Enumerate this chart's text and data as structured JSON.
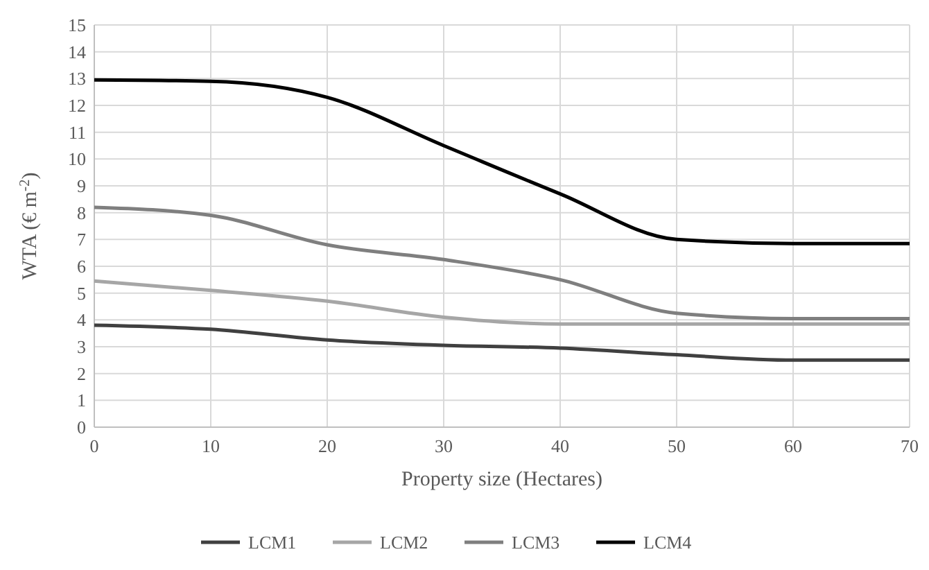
{
  "chart_data": {
    "type": "line",
    "xlabel": "Property size (Hectares)",
    "ylabel": "WTA (€ m$^{-2}$)",
    "x": [
      0,
      10,
      20,
      30,
      40,
      50,
      60,
      70
    ],
    "xlim": [
      0,
      70
    ],
    "xticks": [
      0,
      10,
      20,
      30,
      40,
      50,
      60,
      70
    ],
    "ylim": [
      0,
      15
    ],
    "yticks": [
      0,
      1,
      2,
      3,
      4,
      5,
      6,
      7,
      8,
      9,
      10,
      11,
      12,
      13,
      14,
      15
    ],
    "grid": true,
    "legend": "bottom",
    "marker": "none",
    "line_style": "solid",
    "series": [
      {
        "name": "LCM1",
        "color": "#404040",
        "values": [
          3.8,
          3.65,
          3.25,
          3.05,
          2.95,
          2.7,
          2.5,
          2.5
        ]
      },
      {
        "name": "LCM2",
        "color": "#a6a6a6",
        "values": [
          5.45,
          5.1,
          4.7,
          4.1,
          3.85,
          3.85,
          3.85,
          3.85
        ]
      },
      {
        "name": "LCM3",
        "color": "#7f7f7f",
        "values": [
          8.2,
          7.9,
          6.8,
          6.25,
          5.5,
          4.25,
          4.05,
          4.05
        ]
      },
      {
        "name": "LCM4",
        "color": "#000000",
        "values": [
          12.95,
          12.9,
          12.3,
          10.5,
          8.7,
          7.0,
          6.85,
          6.85
        ]
      }
    ]
  }
}
